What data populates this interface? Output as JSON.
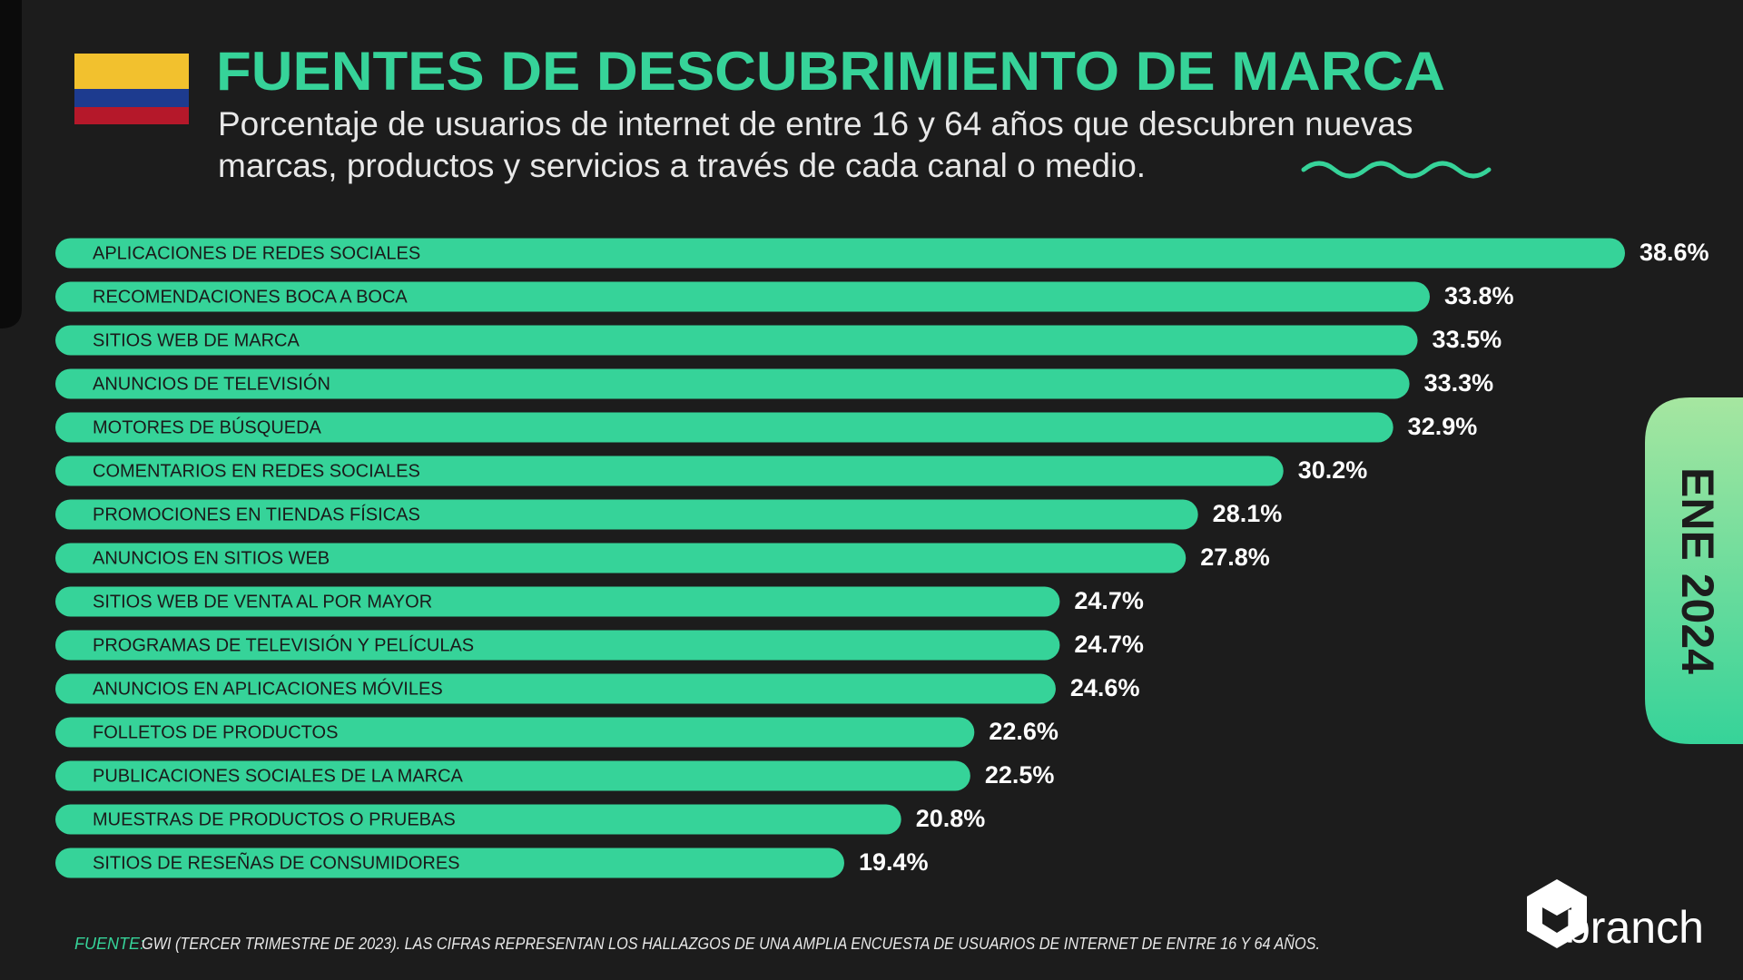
{
  "chart_data": {
    "type": "bar",
    "orientation": "horizontal",
    "title": "FUENTES DE DESCUBRIMIENTO DE MARCA",
    "subtitle": [
      "Porcentaje de usuarios de internet de entre 16 y 64 años que descubren nuevas",
      "marcas, productos y servicios a través de cada canal o medio."
    ],
    "categories": [
      "APLICACIONES DE REDES SOCIALES",
      "RECOMENDACIONES BOCA A BOCA",
      "SITIOS WEB DE MARCA",
      "ANUNCIOS DE TELEVISIÓN",
      "MOTORES DE BÚSQUEDA",
      "COMENTARIOS EN REDES SOCIALES",
      "PROMOCIONES EN TIENDAS FÍSICAS",
      "ANUNCIOS EN SITIOS WEB",
      "SITIOS WEB DE VENTA AL POR MAYOR",
      "PROGRAMAS DE TELEVISIÓN Y PELÍCULAS",
      "ANUNCIOS EN APLICACIONES MÓVILES",
      "FOLLETOS DE PRODUCTOS",
      "PUBLICACIONES SOCIALES DE LA MARCA",
      "MUESTRAS DE PRODUCTOS O PRUEBAS",
      "SITIOS DE RESEÑAS DE CONSUMIDORES"
    ],
    "values": [
      38.6,
      33.8,
      33.5,
      33.3,
      32.9,
      30.2,
      28.1,
      27.8,
      24.7,
      24.7,
      24.6,
      22.6,
      22.5,
      20.8,
      19.4
    ],
    "value_labels": [
      "38.6%",
      "33.8%",
      "33.5%",
      "33.3%",
      "32.9%",
      "30.2%",
      "28.1%",
      "27.8%",
      "24.7%",
      "24.7%",
      "24.6%",
      "22.6%",
      "22.5%",
      "20.8%",
      "19.4%"
    ],
    "color": "#36d399",
    "date_tab": "ENE 2024",
    "source_label": "FUENTE:",
    "source_text": "GWI (TERCER TRIMESTRE DE 2023). LAS CIFRAS REPRESENTAN LOS HALLAZGOS DE UNA AMPLIA ENCUESTA DE USUARIOS DE INTERNET DE ENTRE 16 Y 64 AÑOS.",
    "brand": "branch"
  }
}
